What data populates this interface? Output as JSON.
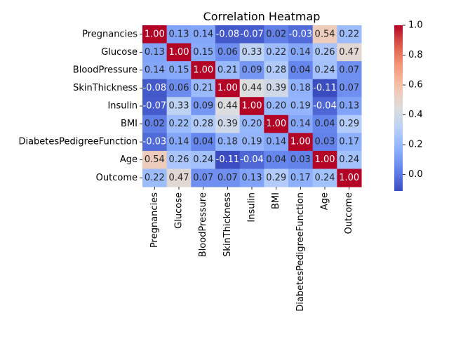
{
  "chart_data": {
    "type": "heatmap",
    "title": "Correlation Heatmap",
    "xlabel": "",
    "ylabel": "",
    "rows": [
      "Pregnancies",
      "Glucose",
      "BloodPressure",
      "SkinThickness",
      "Insulin",
      "BMI",
      "DiabetesPedigreeFunction",
      "Age",
      "Outcome"
    ],
    "columns": [
      "Pregnancies",
      "Glucose",
      "BloodPressure",
      "SkinThickness",
      "Insulin",
      "BMI",
      "DiabetesPedigreeFunction",
      "Age",
      "Outcome"
    ],
    "values": [
      [
        1.0,
        0.13,
        0.14,
        -0.08,
        -0.07,
        0.02,
        -0.03,
        0.54,
        0.22
      ],
      [
        0.13,
        1.0,
        0.15,
        0.06,
        0.33,
        0.22,
        0.14,
        0.26,
        0.47
      ],
      [
        0.14,
        0.15,
        1.0,
        0.21,
        0.09,
        0.28,
        0.04,
        0.24,
        0.07
      ],
      [
        -0.08,
        0.06,
        0.21,
        1.0,
        0.44,
        0.39,
        0.18,
        -0.11,
        0.07
      ],
      [
        -0.07,
        0.33,
        0.09,
        0.44,
        1.0,
        0.2,
        0.19,
        -0.04,
        0.13
      ],
      [
        0.02,
        0.22,
        0.28,
        0.39,
        0.2,
        1.0,
        0.14,
        0.04,
        0.29
      ],
      [
        -0.03,
        0.14,
        0.04,
        0.18,
        0.19,
        0.14,
        1.0,
        0.03,
        0.17
      ],
      [
        0.54,
        0.26,
        0.24,
        -0.11,
        -0.04,
        0.04,
        0.03,
        1.0,
        0.24
      ],
      [
        0.22,
        0.47,
        0.07,
        0.07,
        0.13,
        0.29,
        0.17,
        0.24,
        1.0
      ]
    ],
    "value_range": [
      -0.11,
      1.0
    ],
    "colormap": "coolwarm",
    "colorbar_ticks": [
      "1.0",
      "0.8",
      "0.6",
      "0.4",
      "0.2",
      "0.0"
    ],
    "colorbar_tick_values": [
      1.0,
      0.8,
      0.6,
      0.4,
      0.2,
      0.0
    ],
    "grid": false,
    "annotations": "cell values shown with 2 decimals"
  }
}
